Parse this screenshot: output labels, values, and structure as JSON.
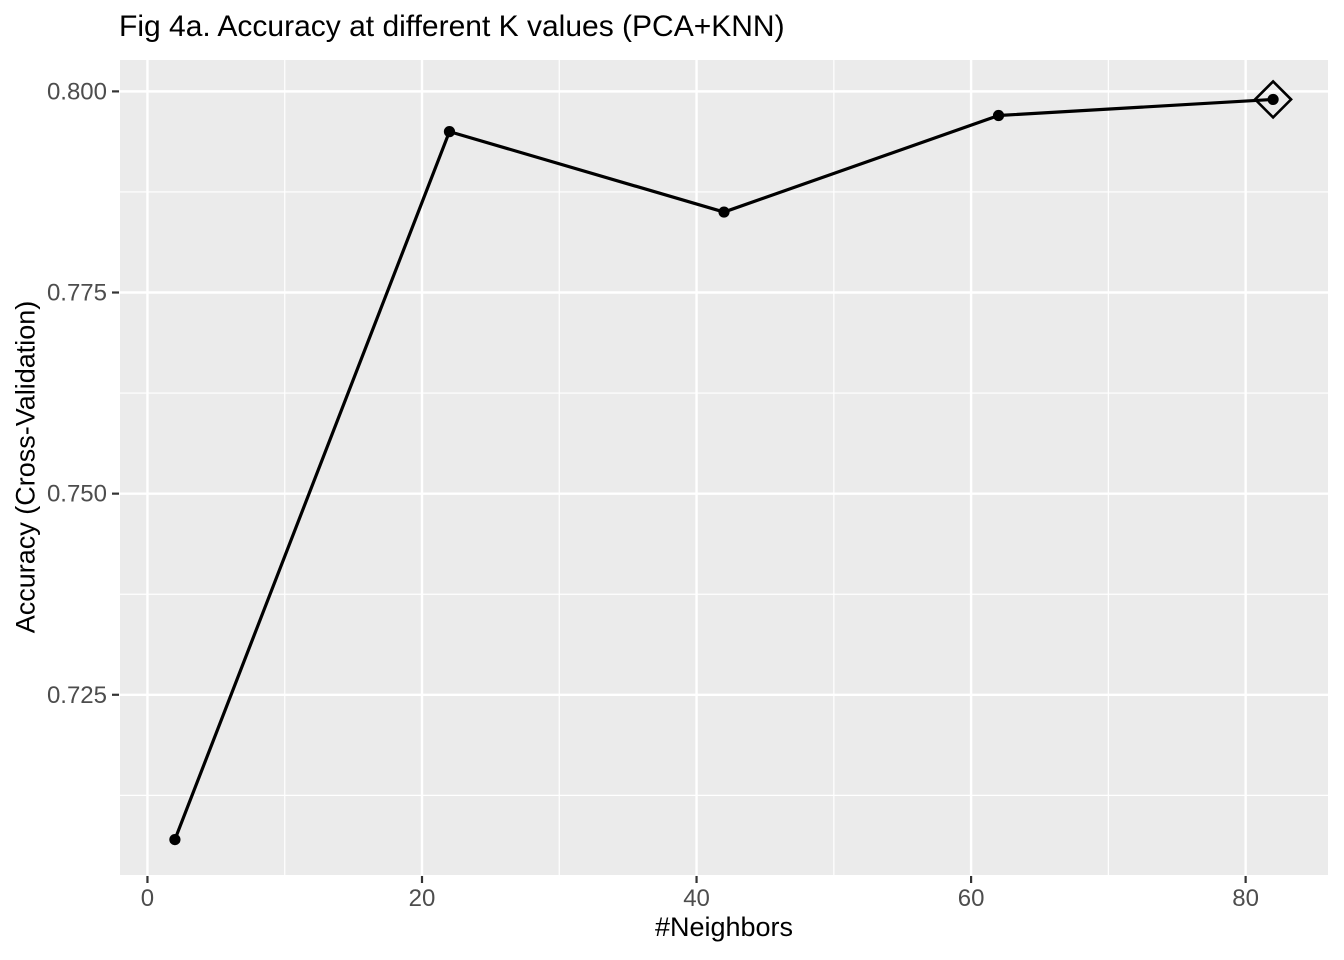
{
  "chart_data": {
    "type": "line",
    "title": "Fig 4a. Accuracy at different K values (PCA+KNN)",
    "xlabel": "#Neighbors",
    "ylabel": "Accuracy (Cross-Validation)",
    "series": [
      {
        "x": [
          2,
          22,
          42,
          62,
          82
        ],
        "y": [
          0.707,
          0.795,
          0.785,
          0.797,
          0.799
        ]
      }
    ],
    "best_point": {
      "x": 82,
      "y": 0.799,
      "marker": "open-diamond"
    },
    "x_ticks": [
      {
        "v": 0,
        "label": "0"
      },
      {
        "v": 20,
        "label": "20"
      },
      {
        "v": 40,
        "label": "40"
      },
      {
        "v": 60,
        "label": "60"
      },
      {
        "v": 80,
        "label": "80"
      }
    ],
    "y_ticks": [
      {
        "v": 0.725,
        "label": "0.725"
      },
      {
        "v": 0.75,
        "label": "0.750"
      },
      {
        "v": 0.775,
        "label": "0.775"
      },
      {
        "v": 0.8,
        "label": "0.800"
      }
    ],
    "x_minor": [
      10,
      30,
      50,
      70
    ],
    "y_minor": [
      0.7125,
      0.7375,
      0.7625,
      0.7875
    ],
    "xlim": [
      -2,
      86
    ],
    "ylim": [
      0.7026,
      0.8039
    ],
    "grid": true,
    "legend": "none",
    "colors": {
      "panel_bg": "#EBEBEB",
      "grid": "#FFFFFF",
      "line": "#000000",
      "point": "#000000",
      "tick": "#333333",
      "axis_text": "#4D4D4D",
      "title_text": "#000000"
    }
  }
}
